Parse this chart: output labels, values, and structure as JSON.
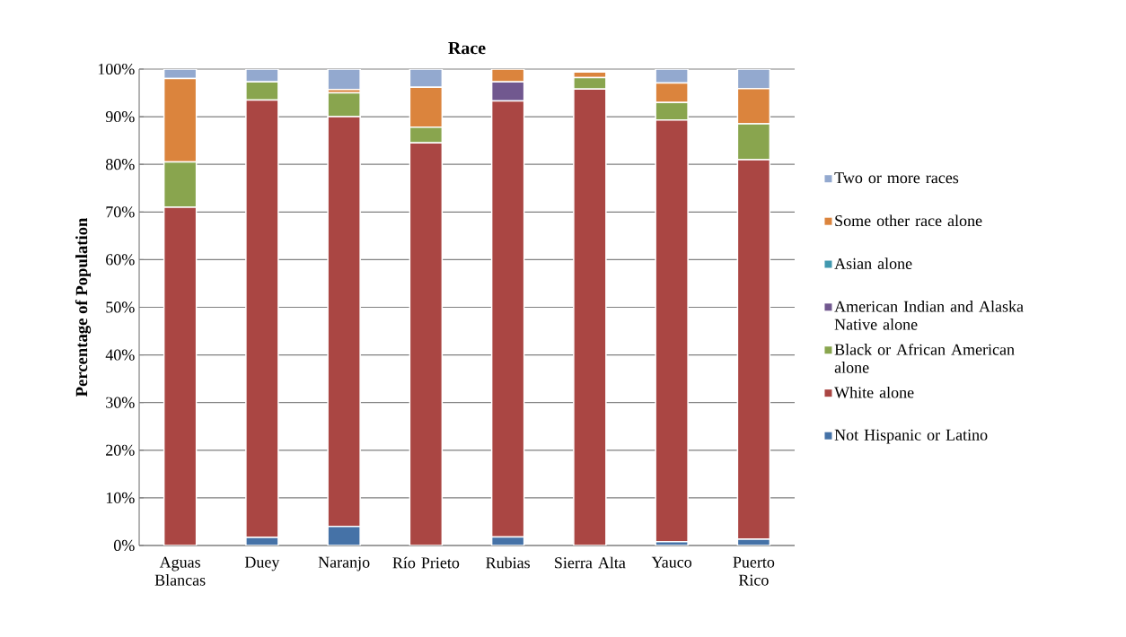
{
  "chart_data": {
    "type": "bar",
    "stacked": true,
    "title": "Race",
    "ylabel": "Percentage of Population",
    "categories": [
      "Aguas Blancas",
      "Duey",
      "Naranjo",
      "Río Prieto",
      "Rubias",
      "Sierra Alta",
      "Yauco",
      "Puerto Rico"
    ],
    "series": [
      {
        "name": "Not Hispanic or Latino",
        "color": "#4572a7",
        "values": [
          0,
          1.7,
          4,
          0,
          1.8,
          0,
          0.8,
          1.3
        ]
      },
      {
        "name": "White alone",
        "color": "#aa4643",
        "values": [
          71,
          91.8,
          86,
          84.5,
          91.5,
          95.8,
          88.5,
          79.7
        ]
      },
      {
        "name": "Black or African American alone",
        "color": "#89a54e",
        "values": [
          9.5,
          3.8,
          5,
          3.3,
          0,
          2.4,
          3.7,
          7.5
        ]
      },
      {
        "name": "American Indian and Alaska Native alone",
        "color": "#71588f",
        "values": [
          0,
          0,
          0,
          0,
          4,
          0,
          0,
          0
        ]
      },
      {
        "name": "Asian alone",
        "color": "#4198af",
        "values": [
          0,
          0,
          0,
          0,
          0,
          0,
          0,
          0
        ]
      },
      {
        "name": "Some other race alone",
        "color": "#db843d",
        "values": [
          17.5,
          0,
          0.7,
          8.4,
          2.7,
          1.2,
          4.1,
          7.4
        ]
      },
      {
        "name": "Two or more races",
        "color": "#93a9cf",
        "values": [
          2,
          2.7,
          4.3,
          3.8,
          0,
          0,
          2.9,
          4.1
        ]
      }
    ],
    "ylim": [
      0,
      100
    ],
    "yticks": [
      {
        "value": 0,
        "label": "0%"
      },
      {
        "value": 10,
        "label": "10%"
      },
      {
        "value": 20,
        "label": "20%"
      },
      {
        "value": 30,
        "label": "30%"
      },
      {
        "value": 40,
        "label": "40%"
      },
      {
        "value": 50,
        "label": "50%"
      },
      {
        "value": 60,
        "label": "60%"
      },
      {
        "value": 70,
        "label": "70%"
      },
      {
        "value": 80,
        "label": "80%"
      },
      {
        "value": 90,
        "label": "90%"
      },
      {
        "value": 100,
        "label": "100%"
      }
    ],
    "grid": "y",
    "legend": "right"
  }
}
